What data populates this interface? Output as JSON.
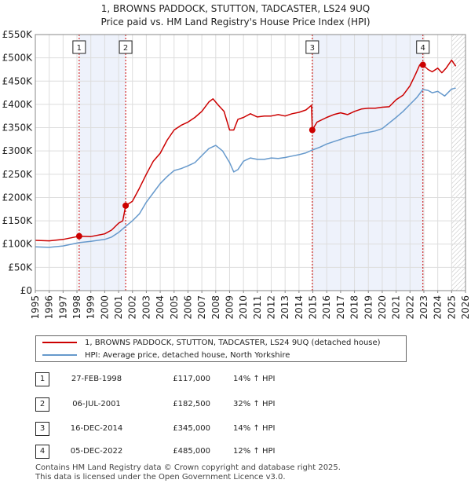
{
  "title_line1": "1, BROWNS PADDOCK, STUTTON, TADCASTER, LS24 9UQ",
  "title_line2": "Price paid vs. HM Land Registry's House Price Index (HPI)",
  "legend": {
    "property_label": "1, BROWNS PADDOCK, STUTTON, TADCASTER, LS24 9UQ (detached house)",
    "hpi_label": "HPI: Average price, detached house, North Yorkshire"
  },
  "transactions": [
    {
      "num": "1",
      "date": "27-FEB-1998",
      "price": "£117,000",
      "hpi": "14% ↑ HPI"
    },
    {
      "num": "2",
      "date": "06-JUL-2001",
      "price": "£182,500",
      "hpi": "32% ↑ HPI"
    },
    {
      "num": "3",
      "date": "16-DEC-2014",
      "price": "£345,000",
      "hpi": "14% ↑ HPI"
    },
    {
      "num": "4",
      "date": "05-DEC-2022",
      "price": "£485,000",
      "hpi": "12% ↑ HPI"
    }
  ],
  "footer_line1": "Contains HM Land Registry data © Crown copyright and database right 2025.",
  "footer_line2": "This data is licensed under the Open Government Licence v3.0.",
  "chart_data": {
    "type": "line",
    "title": "1, BROWNS PADDOCK, STUTTON, TADCASTER, LS24 9UQ — Price paid vs. HM Land Registry's House Price Index (HPI)",
    "xlabel": "",
    "ylabel": "",
    "xlim": [
      1995,
      2026
    ],
    "ylim": [
      0,
      550000
    ],
    "x_ticks": [
      1995,
      1996,
      1997,
      1998,
      1999,
      2000,
      2001,
      2002,
      2003,
      2004,
      2005,
      2006,
      2007,
      2008,
      2009,
      2010,
      2011,
      2012,
      2013,
      2014,
      2015,
      2016,
      2017,
      2018,
      2019,
      2020,
      2021,
      2022,
      2023,
      2024,
      2025,
      2026
    ],
    "y_ticks": [
      0,
      50000,
      100000,
      150000,
      200000,
      250000,
      300000,
      350000,
      400000,
      450000,
      500000,
      550000
    ],
    "y_tick_labels": [
      "£0",
      "£50K",
      "£100K",
      "£150K",
      "£200K",
      "£250K",
      "£300K",
      "£350K",
      "£400K",
      "£450K",
      "£500K",
      "£550K"
    ],
    "grid": true,
    "colors": {
      "property": "#cc0000",
      "hpi": "#6699cc",
      "shade": "#eef2fb",
      "marker": "#cc0000"
    },
    "shaded_ranges": [
      [
        1998.16,
        2001.51
      ],
      [
        2014.96,
        2022.93
      ]
    ],
    "hatch_range": [
      2025.0,
      2026.0
    ],
    "series": [
      {
        "name": "1, BROWNS PADDOCK, STUTTON, TADCASTER, LS24 9UQ (detached house)",
        "x": [
          1995,
          1996,
          1997,
          1998.16,
          1999,
          2000,
          2000.5,
          2001.0,
          2001.3,
          2001.51,
          2002,
          2002.5,
          2003,
          2003.5,
          2004,
          2004.5,
          2005,
          2005.5,
          2006,
          2006.5,
          2007,
          2007.5,
          2007.8,
          2008.2,
          2008.6,
          2009,
          2009.3,
          2009.6,
          2010,
          2010.5,
          2011,
          2011.5,
          2012,
          2012.5,
          2013,
          2013.5,
          2014,
          2014.5,
          2014.9,
          2014.96,
          2015.3,
          2016,
          2016.5,
          2017,
          2017.5,
          2018,
          2018.5,
          2019,
          2019.5,
          2020,
          2020.5,
          2021,
          2021.5,
          2022,
          2022.4,
          2022.7,
          2022.93,
          2023.3,
          2023.6,
          2024,
          2024.3,
          2024.6,
          2025,
          2025.3
        ],
        "values": [
          108000,
          107000,
          110000,
          117000,
          116000,
          122000,
          130000,
          145000,
          150000,
          182500,
          192000,
          220000,
          250000,
          278000,
          295000,
          323000,
          345000,
          355000,
          362000,
          372000,
          385000,
          405000,
          412000,
          398000,
          385000,
          345000,
          345000,
          368000,
          372000,
          380000,
          373000,
          375000,
          375000,
          378000,
          375000,
          380000,
          383000,
          388000,
          398000,
          345000,
          362000,
          372000,
          378000,
          382000,
          378000,
          385000,
          390000,
          392000,
          392000,
          394000,
          395000,
          410000,
          420000,
          440000,
          465000,
          485000,
          485000,
          475000,
          470000,
          478000,
          468000,
          478000,
          495000,
          482000
        ]
      },
      {
        "name": "HPI: Average price, detached house, North Yorkshire",
        "x": [
          1995,
          1996,
          1997,
          1998.16,
          1999,
          2000,
          2000.5,
          2001.0,
          2001.51,
          2002,
          2002.5,
          2003,
          2003.5,
          2004,
          2004.5,
          2005,
          2005.5,
          2006,
          2006.5,
          2007,
          2007.5,
          2008,
          2008.5,
          2009,
          2009.3,
          2009.6,
          2010,
          2010.5,
          2011,
          2011.5,
          2012,
          2012.5,
          2013,
          2013.5,
          2014,
          2014.5,
          2014.96,
          2015.5,
          2016,
          2016.5,
          2017,
          2017.5,
          2018,
          2018.5,
          2019,
          2019.5,
          2020,
          2020.5,
          2021,
          2021.5,
          2022,
          2022.5,
          2022.93,
          2023.3,
          2023.6,
          2024,
          2024.5,
          2025,
          2025.3
        ],
        "values": [
          94000,
          93000,
          96000,
          103000,
          106000,
          110000,
          115000,
          125000,
          138000,
          150000,
          165000,
          190000,
          210000,
          230000,
          245000,
          258000,
          262000,
          268000,
          275000,
          290000,
          305000,
          312000,
          300000,
          275000,
          255000,
          260000,
          278000,
          285000,
          282000,
          282000,
          285000,
          284000,
          286000,
          289000,
          292000,
          296000,
          302000,
          308000,
          315000,
          320000,
          325000,
          330000,
          333000,
          338000,
          340000,
          343000,
          348000,
          360000,
          372000,
          385000,
          400000,
          415000,
          432000,
          430000,
          425000,
          428000,
          418000,
          433000,
          435000
        ]
      }
    ],
    "markers": [
      {
        "label": "1",
        "x": 1998.16,
        "y": 117000
      },
      {
        "label": "2",
        "x": 2001.51,
        "y": 182500
      },
      {
        "label": "3",
        "x": 2014.96,
        "y": 345000
      },
      {
        "label": "4",
        "x": 2022.93,
        "y": 485000
      }
    ]
  }
}
